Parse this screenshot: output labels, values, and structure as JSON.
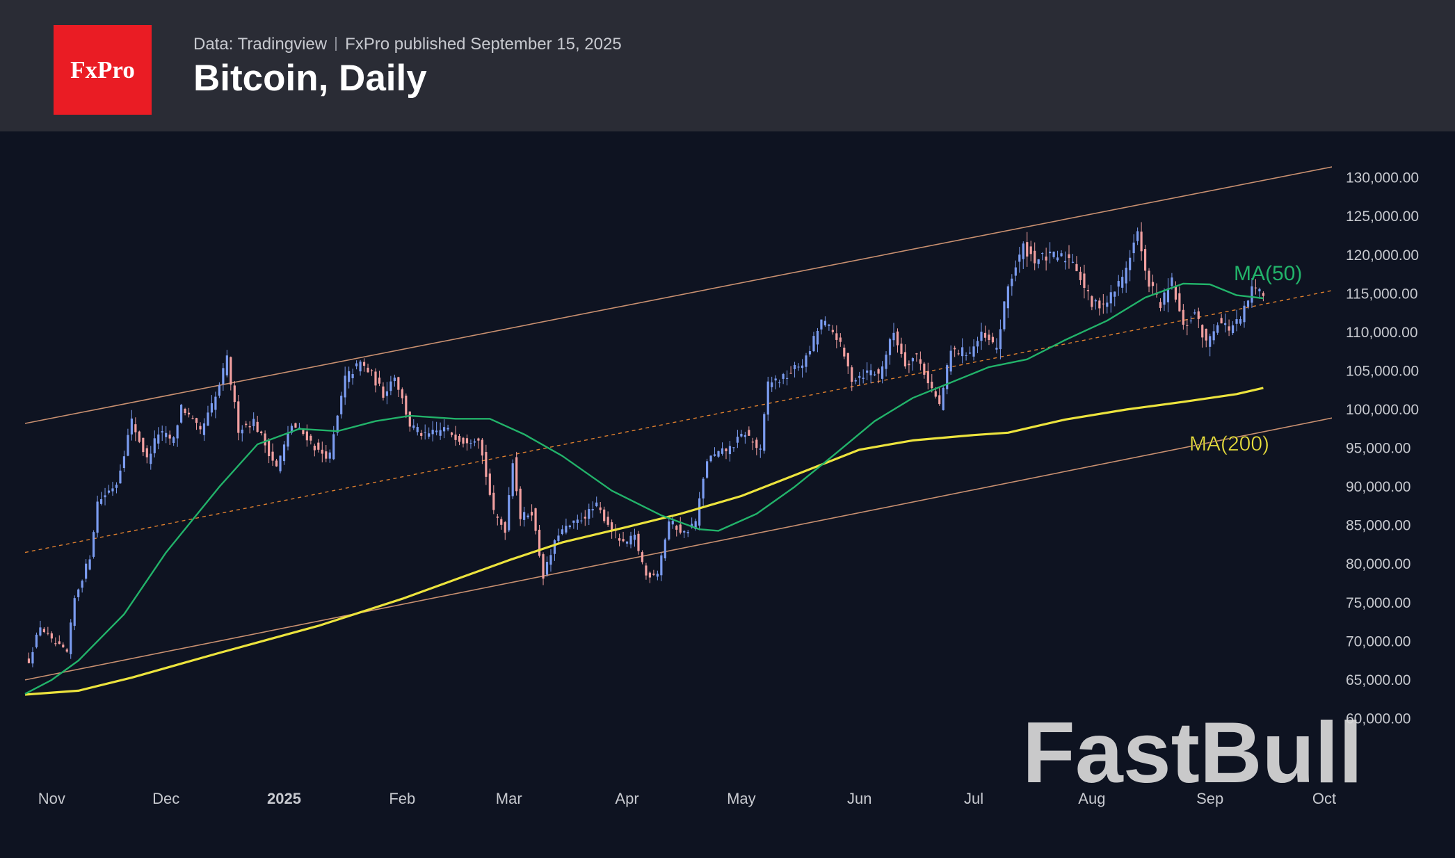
{
  "header": {
    "logo_text": "FxPro",
    "source": "Data: Tradingview",
    "published": "FxPro published September 15, 2025",
    "title": "Bitcoin, Daily"
  },
  "watermark": "FastBull",
  "colors": {
    "background": "#0e1321",
    "header": "#2a2c35",
    "logo": "#ea1c24",
    "up_candle": "#7b9cf0",
    "down_candle": "#f2a0a0",
    "ma50": "#22b36a",
    "ma200": "#ece33d",
    "channel": "#c99070",
    "midline": "#e0802e"
  },
  "chart_data": {
    "type": "candlestick",
    "y_axis": {
      "min": 55000,
      "max": 136000,
      "ticks": [
        "130,000.00",
        "125,000.00",
        "120,000.00",
        "115,000.00",
        "110,000.00",
        "105,000.00",
        "100,000.00",
        "95,000.00",
        "90,000.00",
        "85,000.00",
        "80,000.00",
        "75,000.00",
        "70,000.00",
        "65,000.00",
        "60,000.00"
      ],
      "tick_values": [
        130000,
        125000,
        120000,
        115000,
        110000,
        105000,
        100000,
        95000,
        90000,
        85000,
        80000,
        75000,
        70000,
        65000,
        60000
      ]
    },
    "x_axis": {
      "start": "2024-10-25",
      "end": "2025-10-03",
      "labels": [
        {
          "text": "Nov",
          "date": "2024-11-01"
        },
        {
          "text": "Dec",
          "date": "2024-12-01"
        },
        {
          "text": "2025",
          "date": "2025-01-01"
        },
        {
          "text": "Feb",
          "date": "2025-02-01"
        },
        {
          "text": "Mar",
          "date": "2025-03-01"
        },
        {
          "text": "Apr",
          "date": "2025-04-01"
        },
        {
          "text": "May",
          "date": "2025-05-01"
        },
        {
          "text": "Jun",
          "date": "2025-06-01"
        },
        {
          "text": "Jul",
          "date": "2025-07-01"
        },
        {
          "text": "Aug",
          "date": "2025-08-01"
        },
        {
          "text": "Sep",
          "date": "2025-09-01"
        },
        {
          "text": "Oct",
          "date": "2025-10-01"
        }
      ]
    },
    "price_anchors": [
      {
        "date": "2024-10-26",
        "close": 67500
      },
      {
        "date": "2024-10-29",
        "close": 72000
      },
      {
        "date": "2024-11-01",
        "close": 70000
      },
      {
        "date": "2024-11-05",
        "close": 68500
      },
      {
        "date": "2024-11-07",
        "close": 75500
      },
      {
        "date": "2024-11-11",
        "close": 81000
      },
      {
        "date": "2024-11-13",
        "close": 88000
      },
      {
        "date": "2024-11-18",
        "close": 90500
      },
      {
        "date": "2024-11-22",
        "close": 98500
      },
      {
        "date": "2024-11-26",
        "close": 93500
      },
      {
        "date": "2024-11-29",
        "close": 97000
      },
      {
        "date": "2024-12-03",
        "close": 96000
      },
      {
        "date": "2024-12-05",
        "close": 100500
      },
      {
        "date": "2024-12-10",
        "close": 97000
      },
      {
        "date": "2024-12-14",
        "close": 101500
      },
      {
        "date": "2024-12-17",
        "close": 106500
      },
      {
        "date": "2024-12-20",
        "close": 97500
      },
      {
        "date": "2024-12-24",
        "close": 98500
      },
      {
        "date": "2024-12-30",
        "close": 92500
      },
      {
        "date": "2025-01-03",
        "close": 98000
      },
      {
        "date": "2025-01-07",
        "close": 96500
      },
      {
        "date": "2025-01-10",
        "close": 94500
      },
      {
        "date": "2025-01-13",
        "close": 94000
      },
      {
        "date": "2025-01-17",
        "close": 104000
      },
      {
        "date": "2025-01-21",
        "close": 106000
      },
      {
        "date": "2025-01-24",
        "close": 104500
      },
      {
        "date": "2025-01-27",
        "close": 102000
      },
      {
        "date": "2025-01-30",
        "close": 104500
      },
      {
        "date": "2025-02-03",
        "close": 98000
      },
      {
        "date": "2025-02-07",
        "close": 96500
      },
      {
        "date": "2025-02-12",
        "close": 97500
      },
      {
        "date": "2025-02-17",
        "close": 96000
      },
      {
        "date": "2025-02-21",
        "close": 96500
      },
      {
        "date": "2025-02-25",
        "close": 86500
      },
      {
        "date": "2025-02-28",
        "close": 84500
      },
      {
        "date": "2025-03-02",
        "close": 93500
      },
      {
        "date": "2025-03-04",
        "close": 86000
      },
      {
        "date": "2025-03-07",
        "close": 86800
      },
      {
        "date": "2025-03-10",
        "close": 78500
      },
      {
        "date": "2025-03-14",
        "close": 84000
      },
      {
        "date": "2025-03-19",
        "close": 85500
      },
      {
        "date": "2025-03-24",
        "close": 87500
      },
      {
        "date": "2025-03-28",
        "close": 84500
      },
      {
        "date": "2025-03-31",
        "close": 82500
      },
      {
        "date": "2025-04-03",
        "close": 83500
      },
      {
        "date": "2025-04-06",
        "close": 78500
      },
      {
        "date": "2025-04-09",
        "close": 79000
      },
      {
        "date": "2025-04-12",
        "close": 85500
      },
      {
        "date": "2025-04-16",
        "close": 84000
      },
      {
        "date": "2025-04-19",
        "close": 85500
      },
      {
        "date": "2025-04-22",
        "close": 93500
      },
      {
        "date": "2025-04-28",
        "close": 95000
      },
      {
        "date": "2025-05-02",
        "close": 97000
      },
      {
        "date": "2025-05-06",
        "close": 94500
      },
      {
        "date": "2025-05-08",
        "close": 103500
      },
      {
        "date": "2025-05-12",
        "close": 104000
      },
      {
        "date": "2025-05-18",
        "close": 106500
      },
      {
        "date": "2025-05-22",
        "close": 111500
      },
      {
        "date": "2025-05-26",
        "close": 109500
      },
      {
        "date": "2025-05-30",
        "close": 104000
      },
      {
        "date": "2025-06-04",
        "close": 105000
      },
      {
        "date": "2025-06-06",
        "close": 104500
      },
      {
        "date": "2025-06-10",
        "close": 110000
      },
      {
        "date": "2025-06-13",
        "close": 106000
      },
      {
        "date": "2025-06-16",
        "close": 107000
      },
      {
        "date": "2025-06-22",
        "close": 100500
      },
      {
        "date": "2025-06-25",
        "close": 107500
      },
      {
        "date": "2025-06-30",
        "close": 107500
      },
      {
        "date": "2025-07-03",
        "close": 109500
      },
      {
        "date": "2025-07-07",
        "close": 108000
      },
      {
        "date": "2025-07-10",
        "close": 116000
      },
      {
        "date": "2025-07-14",
        "close": 121000
      },
      {
        "date": "2025-07-17",
        "close": 119500
      },
      {
        "date": "2025-07-22",
        "close": 119800
      },
      {
        "date": "2025-07-27",
        "close": 119500
      },
      {
        "date": "2025-08-01",
        "close": 113500
      },
      {
        "date": "2025-08-05",
        "close": 114000
      },
      {
        "date": "2025-08-09",
        "close": 117000
      },
      {
        "date": "2025-08-13",
        "close": 123000
      },
      {
        "date": "2025-08-15",
        "close": 117500
      },
      {
        "date": "2025-08-19",
        "close": 113500
      },
      {
        "date": "2025-08-22",
        "close": 116500
      },
      {
        "date": "2025-08-25",
        "close": 110500
      },
      {
        "date": "2025-08-28",
        "close": 112500
      },
      {
        "date": "2025-08-31",
        "close": 108500
      },
      {
        "date": "2025-09-03",
        "close": 111500
      },
      {
        "date": "2025-09-06",
        "close": 110500
      },
      {
        "date": "2025-09-09",
        "close": 111500
      },
      {
        "date": "2025-09-12",
        "close": 115500
      },
      {
        "date": "2025-09-15",
        "close": 115300
      }
    ],
    "ma50": {
      "label": "MA(50)",
      "points": [
        {
          "date": "2024-10-25",
          "value": 63200
        },
        {
          "date": "2024-11-01",
          "value": 65000
        },
        {
          "date": "2024-11-08",
          "value": 67500
        },
        {
          "date": "2024-11-20",
          "value": 73500
        },
        {
          "date": "2024-12-01",
          "value": 81500
        },
        {
          "date": "2024-12-15",
          "value": 90000
        },
        {
          "date": "2024-12-25",
          "value": 95500
        },
        {
          "date": "2025-01-05",
          "value": 97500
        },
        {
          "date": "2025-01-15",
          "value": 97200
        },
        {
          "date": "2025-01-25",
          "value": 98500
        },
        {
          "date": "2025-02-03",
          "value": 99200
        },
        {
          "date": "2025-02-15",
          "value": 98800
        },
        {
          "date": "2025-02-24",
          "value": 98800
        },
        {
          "date": "2025-03-05",
          "value": 96800
        },
        {
          "date": "2025-03-15",
          "value": 94000
        },
        {
          "date": "2025-03-28",
          "value": 89500
        },
        {
          "date": "2025-04-10",
          "value": 86300
        },
        {
          "date": "2025-04-20",
          "value": 84500
        },
        {
          "date": "2025-04-25",
          "value": 84300
        },
        {
          "date": "2025-05-05",
          "value": 86500
        },
        {
          "date": "2025-05-15",
          "value": 90000
        },
        {
          "date": "2025-05-25",
          "value": 94000
        },
        {
          "date": "2025-06-05",
          "value": 98500
        },
        {
          "date": "2025-06-15",
          "value": 101500
        },
        {
          "date": "2025-06-25",
          "value": 103500
        },
        {
          "date": "2025-07-05",
          "value": 105500
        },
        {
          "date": "2025-07-15",
          "value": 106500
        },
        {
          "date": "2025-07-25",
          "value": 109000
        },
        {
          "date": "2025-08-05",
          "value": 111500
        },
        {
          "date": "2025-08-15",
          "value": 114500
        },
        {
          "date": "2025-08-25",
          "value": 116300
        },
        {
          "date": "2025-09-01",
          "value": 116200
        },
        {
          "date": "2025-09-08",
          "value": 114800
        },
        {
          "date": "2025-09-15",
          "value": 114400
        }
      ]
    },
    "ma200": {
      "label": "MA(200)",
      "points": [
        {
          "date": "2024-10-25",
          "value": 63100
        },
        {
          "date": "2024-11-08",
          "value": 63600
        },
        {
          "date": "2024-11-22",
          "value": 65300
        },
        {
          "date": "2024-12-15",
          "value": 68500
        },
        {
          "date": "2025-01-10",
          "value": 72000
        },
        {
          "date": "2025-02-01",
          "value": 75500
        },
        {
          "date": "2025-02-15",
          "value": 78000
        },
        {
          "date": "2025-03-01",
          "value": 80500
        },
        {
          "date": "2025-03-15",
          "value": 82800
        },
        {
          "date": "2025-04-01",
          "value": 84800
        },
        {
          "date": "2025-04-15",
          "value": 86500
        },
        {
          "date": "2025-05-01",
          "value": 88800
        },
        {
          "date": "2025-05-15",
          "value": 91500
        },
        {
          "date": "2025-06-01",
          "value": 94800
        },
        {
          "date": "2025-06-15",
          "value": 96000
        },
        {
          "date": "2025-07-01",
          "value": 96700
        },
        {
          "date": "2025-07-10",
          "value": 97000
        },
        {
          "date": "2025-07-25",
          "value": 98700
        },
        {
          "date": "2025-08-10",
          "value": 100000
        },
        {
          "date": "2025-08-25",
          "value": 101000
        },
        {
          "date": "2025-09-08",
          "value": 102000
        },
        {
          "date": "2025-09-15",
          "value": 102800
        }
      ]
    },
    "channel": {
      "upper": {
        "from": {
          "date": "2024-10-25",
          "value": 98200
        },
        "to": {
          "date": "2025-10-04",
          "value": 131500
        }
      },
      "mid": {
        "from": {
          "date": "2024-10-25",
          "value": 81500
        },
        "to": {
          "date": "2025-10-04",
          "value": 115500
        }
      },
      "lower": {
        "from": {
          "date": "2024-10-25",
          "value": 65000
        },
        "to": {
          "date": "2025-10-04",
          "value": 99000
        }
      }
    }
  }
}
